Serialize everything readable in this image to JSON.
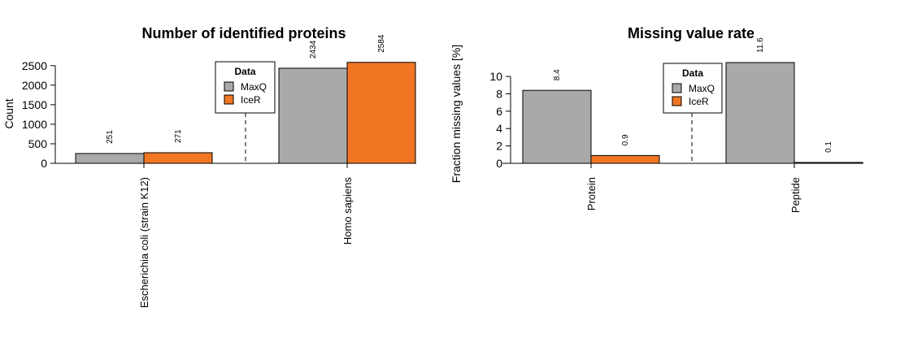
{
  "colors": {
    "MaxQ": "#a9a9a9",
    "IceR": "#f07623"
  },
  "chart_data": [
    {
      "type": "bar",
      "title": "Number of identified proteins",
      "xlabel": "",
      "ylabel": "Count",
      "categories": [
        "Escherichia coli (strain K12)",
        "Homo sapiens"
      ],
      "series": [
        {
          "name": "MaxQ",
          "values": [
            251,
            2434
          ]
        },
        {
          "name": "IceR",
          "values": [
            271,
            2584
          ]
        }
      ],
      "data_labels": [
        [
          "251",
          "271"
        ],
        [
          "2434",
          "2584"
        ]
      ],
      "yticks": [
        "0",
        "500",
        "1000",
        "1500",
        "2000",
        "2500"
      ],
      "ylim": [
        0,
        2600
      ],
      "legend": {
        "title": "Data",
        "placement": "top-center"
      },
      "grid": false
    },
    {
      "type": "bar",
      "title": "Missing value rate",
      "xlabel": "",
      "ylabel": "Fraction missing values [%]",
      "categories": [
        "Protein",
        "Peptide"
      ],
      "series": [
        {
          "name": "MaxQ",
          "values": [
            8.4,
            11.6
          ]
        },
        {
          "name": "IceR",
          "values": [
            0.9,
            0.1
          ]
        }
      ],
      "data_labels": [
        [
          "8.4",
          "0.9"
        ],
        [
          "11.6",
          "0.1"
        ]
      ],
      "yticks": [
        "0",
        "2",
        "4",
        "6",
        "8",
        "10"
      ],
      "ylim": [
        0,
        11.6
      ],
      "legend": {
        "title": "Data",
        "placement": "top-center"
      },
      "grid": false
    }
  ]
}
